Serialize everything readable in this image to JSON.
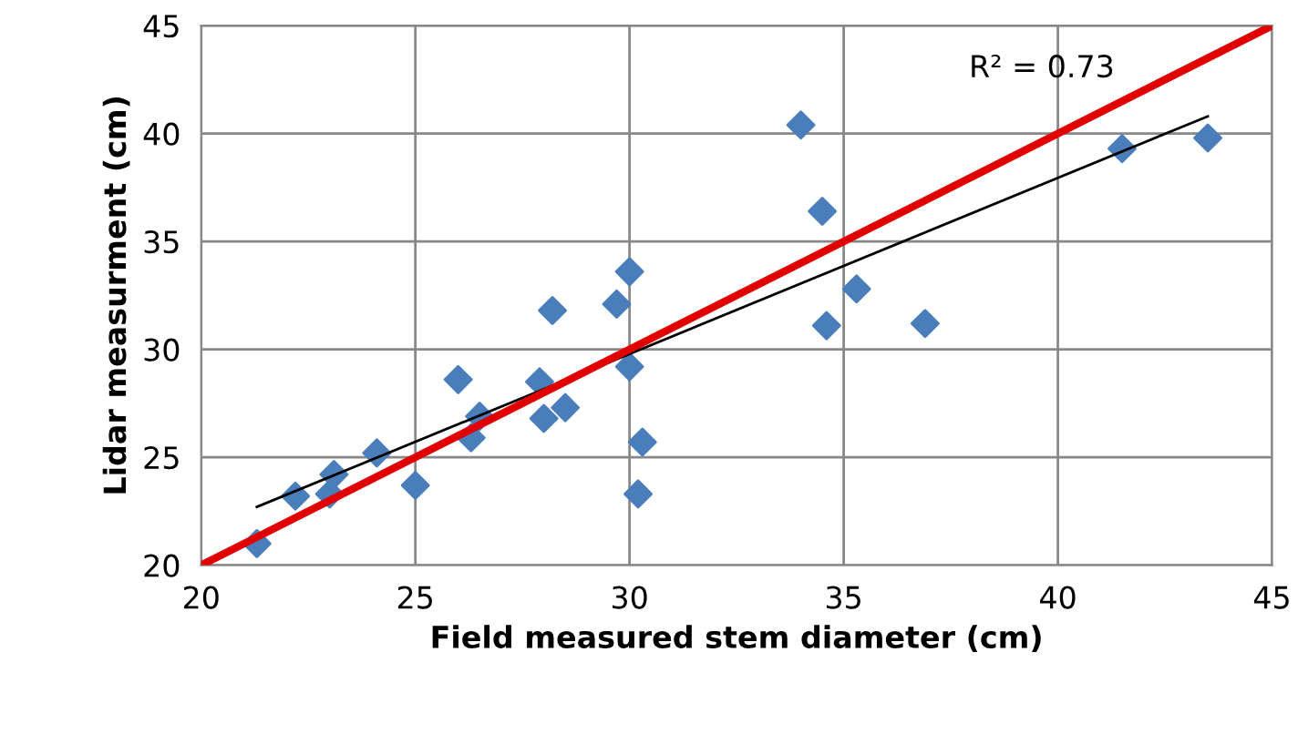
{
  "chart_data": {
    "type": "scatter",
    "xlabel": "Field measured stem diameter (cm)",
    "ylabel": "Lidar measurment (cm)",
    "xlim": [
      20,
      45
    ],
    "xticks": [
      20,
      25,
      30,
      35,
      40,
      45
    ],
    "ylim": [
      20,
      45
    ],
    "yticks": [
      20,
      25,
      30,
      35,
      40,
      45
    ],
    "grid": true,
    "annotations": [
      "R² = 0.73"
    ],
    "series": [
      {
        "color": "#4a7ebb",
        "marker": "diamond",
        "x": [
          21.3,
          22.2,
          23.0,
          23.1,
          24.1,
          25.0,
          26.0,
          26.3,
          26.5,
          27.9,
          28.0,
          28.2,
          28.5,
          29.7,
          30.0,
          30.0,
          30.2,
          30.3,
          34.0,
          34.5,
          34.6,
          35.3,
          36.9,
          41.5,
          43.5
        ],
        "values": [
          21.0,
          23.2,
          23.3,
          24.2,
          25.2,
          23.7,
          28.6,
          25.9,
          26.9,
          28.5,
          26.8,
          31.8,
          27.3,
          32.1,
          33.6,
          29.2,
          23.3,
          25.7,
          40.4,
          36.4,
          31.1,
          32.8,
          31.2,
          39.3,
          39.8
        ]
      },
      {
        "type": "line",
        "color": "#000000",
        "x": [
          21.3,
          43.5
        ],
        "values": [
          22.7,
          40.8
        ]
      },
      {
        "type": "line",
        "color": "#e00000",
        "x": [
          20,
          45
        ],
        "values": [
          20,
          45
        ]
      }
    ]
  }
}
